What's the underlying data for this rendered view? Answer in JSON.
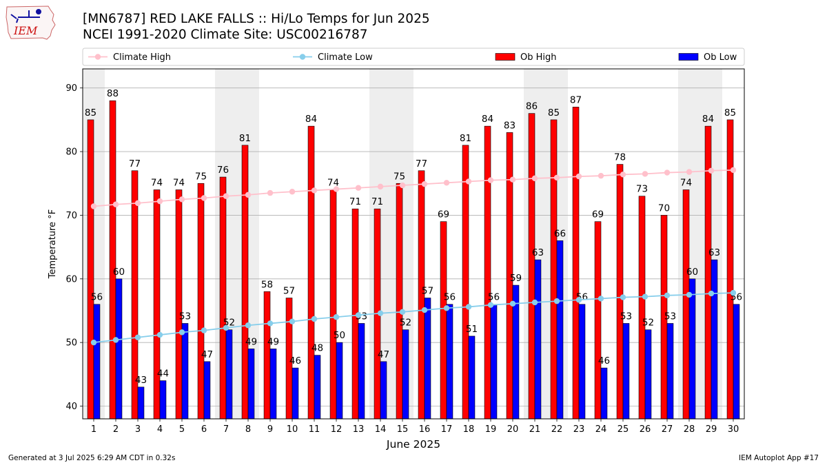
{
  "header": {
    "title_line1": "[MN6787] RED LAKE FALLS :: Hi/Lo Temps for Jun 2025",
    "title_line2": "NCEI 1991-2020 Climate Site: USC00216787",
    "logo_text": "IEM"
  },
  "footer": {
    "generated": "Generated at 3 Jul 2025 6:29 AM CDT in 0.32s",
    "app": "IEM Autoplot App #17"
  },
  "colors": {
    "ob_high": "#ff0000",
    "ob_low": "#0000ff",
    "climate_high": "#ffc0cb",
    "climate_low": "#87ceeb",
    "weekend_band": "#eeeeee",
    "grid": "#b0b0b0"
  },
  "chart_data": {
    "type": "bar",
    "xlabel": "June 2025",
    "ylabel": "Temperature °F",
    "ylim": [
      38,
      93
    ],
    "yticks": [
      40,
      50,
      60,
      70,
      80,
      90
    ],
    "grid": "horizontal",
    "legend_placement": "top, above plot",
    "x": [
      1,
      2,
      3,
      4,
      5,
      6,
      7,
      8,
      9,
      10,
      11,
      12,
      13,
      14,
      15,
      16,
      17,
      18,
      19,
      20,
      21,
      22,
      23,
      24,
      25,
      26,
      27,
      28,
      29,
      30
    ],
    "weekend_days": [
      1,
      7,
      8,
      14,
      15,
      21,
      22,
      28,
      29
    ],
    "series": [
      {
        "name": "Climate High",
        "kind": "line",
        "values": [
          71.4,
          71.7,
          71.9,
          72.2,
          72.5,
          72.7,
          73.0,
          73.2,
          73.5,
          73.7,
          73.9,
          74.1,
          74.3,
          74.5,
          74.7,
          74.9,
          75.1,
          75.3,
          75.5,
          75.6,
          75.8,
          75.9,
          76.1,
          76.2,
          76.4,
          76.5,
          76.7,
          76.8,
          77.0,
          77.1
        ]
      },
      {
        "name": "Climate Low",
        "kind": "line",
        "values": [
          50.0,
          50.4,
          50.8,
          51.2,
          51.6,
          51.9,
          52.3,
          52.7,
          53.0,
          53.3,
          53.7,
          54.0,
          54.3,
          54.6,
          54.8,
          55.1,
          55.4,
          55.6,
          55.9,
          56.1,
          56.3,
          56.5,
          56.7,
          56.9,
          57.1,
          57.2,
          57.4,
          57.5,
          57.7,
          57.8
        ]
      },
      {
        "name": "Ob High",
        "kind": "bar",
        "values": [
          85,
          88,
          77,
          74,
          74,
          75,
          76,
          81,
          58,
          57,
          84,
          74,
          71,
          71,
          75,
          77,
          69,
          81,
          84,
          83,
          86,
          85,
          87,
          69,
          78,
          73,
          70,
          74,
          84,
          85
        ]
      },
      {
        "name": "Ob Low",
        "kind": "bar",
        "values": [
          56,
          60,
          43,
          44,
          53,
          47,
          52,
          49,
          49,
          46,
          48,
          50,
          53,
          47,
          52,
          57,
          56,
          51,
          56,
          59,
          63,
          66,
          56,
          46,
          53,
          52,
          53,
          60,
          63,
          56
        ]
      }
    ]
  }
}
